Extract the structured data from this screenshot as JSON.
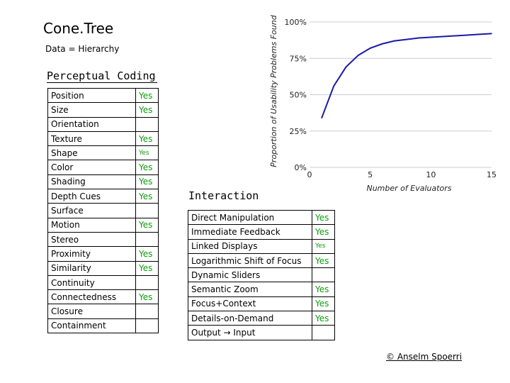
{
  "title": "Cone.Tree",
  "subtitle": "Data = Hierarchy",
  "perceptual_coding": {
    "title": "Perceptual Coding",
    "rows": [
      {
        "label": "Position",
        "value": "Yes",
        "small": false
      },
      {
        "label": "Size",
        "value": "Yes",
        "small": false
      },
      {
        "label": "Orientation",
        "value": "",
        "small": false
      },
      {
        "label": "Texture",
        "value": "Yes",
        "small": false
      },
      {
        "label": "Shape",
        "value": "Yes",
        "small": true
      },
      {
        "label": "Color",
        "value": "Yes",
        "small": false
      },
      {
        "label": "Shading",
        "value": "Yes",
        "small": false
      },
      {
        "label": "Depth Cues",
        "value": "Yes",
        "small": false
      },
      {
        "label": "Surface",
        "value": "",
        "small": false
      },
      {
        "label": "Motion",
        "value": "Yes",
        "small": false
      },
      {
        "label": "Stereo",
        "value": "",
        "small": false
      },
      {
        "label": "Proximity",
        "value": "Yes",
        "small": false
      },
      {
        "label": "Similarity",
        "value": "Yes",
        "small": false
      },
      {
        "label": "Continuity",
        "value": "",
        "small": false
      },
      {
        "label": "Connectedness",
        "value": "Yes",
        "small": false
      },
      {
        "label": "Closure",
        "value": "",
        "small": false
      },
      {
        "label": "Containment",
        "value": "",
        "small": false
      }
    ]
  },
  "interaction": {
    "title": "Interaction",
    "rows": [
      {
        "label": "Direct Manipulation",
        "value": "Yes",
        "small": false
      },
      {
        "label": "Immediate Feedback",
        "value": "Yes",
        "small": false
      },
      {
        "label": "Linked Displays",
        "value": "Yes",
        "small": true
      },
      {
        "label": "Logarithmic Shift of Focus",
        "value": "Yes",
        "small": false
      },
      {
        "label": "Dynamic Sliders",
        "value": "",
        "small": false
      },
      {
        "label": "Semantic Zoom",
        "value": "Yes",
        "small": false
      },
      {
        "label": "Focus+Context",
        "value": "Yes",
        "small": false
      },
      {
        "label": "Details-on-Demand",
        "value": "Yes",
        "small": false
      },
      {
        "label": "Output → Input",
        "value": "",
        "small": false
      }
    ]
  },
  "copyright": "© Anselm Spoerri",
  "colors": {
    "yes_text": "#0b9e0b",
    "curve": "#1a1aa8",
    "grid": "#cccccc"
  },
  "chart_data": {
    "type": "line",
    "xlabel": "Number of Evaluators",
    "ylabel": "Proportion of Usability Problems Found",
    "xlim": [
      0,
      15
    ],
    "ylim": [
      0,
      100
    ],
    "x_ticks": [
      0,
      5,
      10,
      15
    ],
    "y_ticks": [
      0,
      25,
      50,
      75,
      100
    ],
    "x_tick_labels": [
      "0",
      "5",
      "10",
      "15"
    ],
    "y_tick_labels": [
      "0%",
      "25%",
      "50%",
      "75%",
      "100%"
    ],
    "grid": "horizontal",
    "series": [
      {
        "x": [
          1,
          2,
          3,
          4,
          5,
          6,
          7,
          8,
          9,
          10,
          11,
          12,
          13,
          14,
          15
        ],
        "values": [
          34,
          56,
          69,
          77,
          82,
          85,
          87,
          88,
          89,
          89.5,
          90,
          90.5,
          91,
          91.5,
          92
        ]
      }
    ]
  }
}
